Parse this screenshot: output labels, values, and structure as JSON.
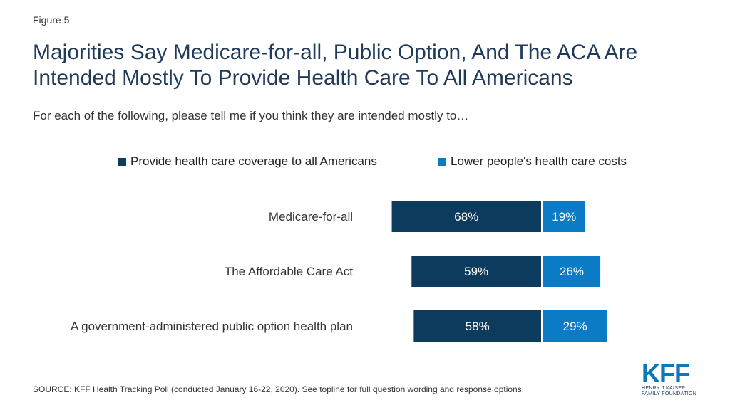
{
  "figure_label": "Figure 5",
  "title": "Majorities Say Medicare-for-all, Public Option, And The ACA Are Intended Mostly To Provide Health Care To All Americans",
  "subtitle": "For each of the following, please tell me if you think they are intended mostly to…",
  "source": "SOURCE: KFF Health Tracking Poll (conducted January 16-22, 2020). See topline for full question wording and response options.",
  "logo": {
    "mark": "KFF",
    "line1": "HENRY J KAISER",
    "line2": "FAMILY FOUNDATION"
  },
  "colors": {
    "series1": "#0d3b5e",
    "series2": "#0b7bc6"
  },
  "chart_data": {
    "type": "bar",
    "orientation": "horizontal",
    "stacked": true,
    "categories": [
      "Medicare-for-all",
      "The Affordable Care Act",
      "A government-administered public option health plan"
    ],
    "series": [
      {
        "name": "Provide health care coverage to all Americans",
        "values": [
          68,
          59,
          58
        ],
        "labels": [
          "68%",
          "59%",
          "58%"
        ]
      },
      {
        "name": "Lower people's health care costs",
        "values": [
          19,
          26,
          29
        ],
        "labels": [
          "19%",
          "26%",
          "29%"
        ]
      }
    ],
    "unit": "%",
    "legend": "top",
    "grid": false
  }
}
